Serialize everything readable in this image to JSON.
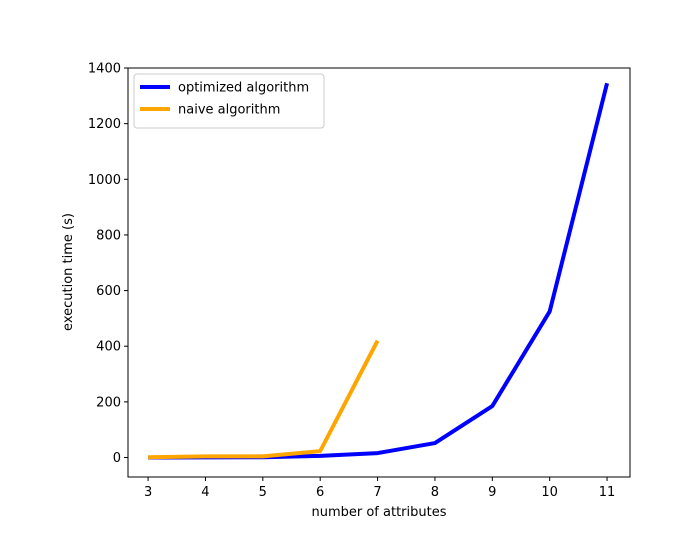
{
  "chart_data": {
    "type": "line",
    "title": "",
    "xlabel": "number of attributes",
    "ylabel": "execution time (s)",
    "xlim": [
      2.65,
      11.4
    ],
    "ylim": [
      -70,
      1400
    ],
    "xticks": [
      3,
      4,
      5,
      6,
      7,
      8,
      9,
      10,
      11
    ],
    "yticks": [
      0,
      200,
      400,
      600,
      800,
      1000,
      1200,
      1400
    ],
    "grid": false,
    "legend_position": "top-left",
    "series": [
      {
        "name": "optimized algorithm",
        "color": "#0000ff",
        "x": [
          3,
          4,
          5,
          6,
          7,
          8,
          9,
          10,
          11
        ],
        "y": [
          0,
          0.5,
          1,
          6,
          16,
          52,
          185,
          525,
          1345
        ]
      },
      {
        "name": "naive algorithm",
        "color": "#ffa500",
        "x": [
          3,
          4,
          5,
          6,
          7
        ],
        "y": [
          1,
          4,
          4,
          23,
          420
        ]
      }
    ]
  }
}
